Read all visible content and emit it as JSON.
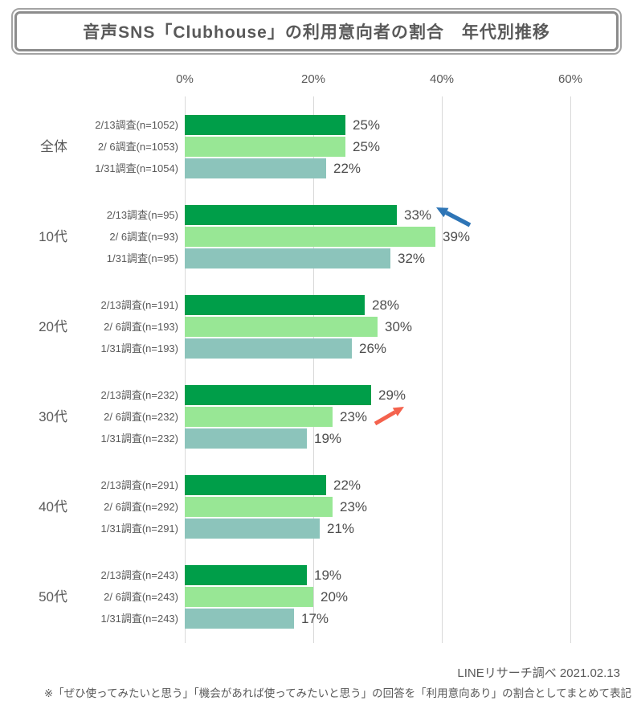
{
  "title": "音声SNS「Clubhouse」の利用意向者の割合　年代別推移",
  "footer": {
    "source": "LINEリサーチ調べ 2021.02.13",
    "note": "※「ぜひ使ってみたいと思う」「機会があれば使ってみたいと思う」の回答を「利用意向あり」の割合としてまとめて表記"
  },
  "chart_data": {
    "type": "bar",
    "orientation": "horizontal",
    "title": "音声SNS「Clubhouse」の利用意向者の割合　年代別推移",
    "x_axis": {
      "tick_labels": [
        "0%",
        "20%",
        "40%",
        "60%"
      ],
      "tick_values": [
        0,
        20,
        40,
        60
      ],
      "max_percent": 64,
      "grid": true
    },
    "series": [
      {
        "name": "2/13調査",
        "color": "#009e49"
      },
      {
        "name": "2/ 6調査",
        "color": "#98e795"
      },
      {
        "name": "1/31調査",
        "color": "#8cc4bb"
      }
    ],
    "groups": [
      {
        "label": "全体",
        "rows": [
          {
            "label": "2/13調査(n=1052)",
            "value": 25,
            "display": "25%"
          },
          {
            "label": "2/ 6調査(n=1053)",
            "value": 25,
            "display": "25%"
          },
          {
            "label": "1/31調査(n=1054)",
            "value": 22,
            "display": "22%"
          }
        ]
      },
      {
        "label": "10代",
        "rows": [
          {
            "label": "2/13調査(n=95)",
            "value": 33,
            "display": "33%"
          },
          {
            "label": "2/ 6調査(n=93)",
            "value": 39,
            "display": "39%"
          },
          {
            "label": "1/31調査(n=95)",
            "value": 32,
            "display": "32%"
          }
        ]
      },
      {
        "label": "20代",
        "rows": [
          {
            "label": "2/13調査(n=191)",
            "value": 28,
            "display": "28%"
          },
          {
            "label": "2/ 6調査(n=193)",
            "value": 30,
            "display": "30%"
          },
          {
            "label": "1/31調査(n=193)",
            "value": 26,
            "display": "26%"
          }
        ]
      },
      {
        "label": "30代",
        "rows": [
          {
            "label": "2/13調査(n=232)",
            "value": 29,
            "display": "29%"
          },
          {
            "label": "2/ 6調査(n=232)",
            "value": 23,
            "display": "23%"
          },
          {
            "label": "1/31調査(n=232)",
            "value": 19,
            "display": "19%"
          }
        ]
      },
      {
        "label": "40代",
        "rows": [
          {
            "label": "2/13調査(n=291)",
            "value": 22,
            "display": "22%"
          },
          {
            "label": "2/ 6調査(n=292)",
            "value": 23,
            "display": "23%"
          },
          {
            "label": "1/31調査(n=291)",
            "value": 21,
            "display": "21%"
          }
        ]
      },
      {
        "label": "50代",
        "rows": [
          {
            "label": "2/13調査(n=243)",
            "value": 19,
            "display": "19%"
          },
          {
            "label": "2/ 6調査(n=243)",
            "value": 20,
            "display": "20%"
          },
          {
            "label": "1/31調査(n=243)",
            "value": 17,
            "display": "17%"
          }
        ]
      }
    ],
    "annotations": [
      {
        "type": "arrow",
        "direction": "up-left",
        "color": "#2e75b6",
        "target": "10代 2/13調査 33%"
      },
      {
        "type": "arrow",
        "direction": "up-right",
        "color": "#f4624d",
        "target": "30代 2/13調査 29%"
      }
    ]
  }
}
